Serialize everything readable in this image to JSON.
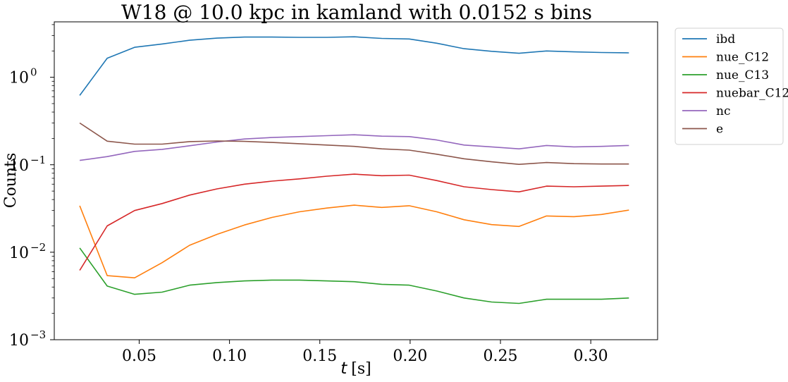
{
  "chart_data": {
    "type": "line",
    "title": "W18 @ 10.0 kpc in kamland with 0.0152 s bins",
    "xlabel_var": "t",
    "xlabel_unit": "[s]",
    "ylabel": "Counts",
    "yscale": "log",
    "ylim": [
      0.001,
      4.3
    ],
    "xlim": [
      0.003,
      0.337
    ],
    "grid": false,
    "legend_position": "outside-top-right",
    "x_ticks": [
      0.05,
      0.1,
      0.15,
      0.2,
      0.25,
      0.3
    ],
    "x_tick_labels": [
      "0.05",
      "0.10",
      "0.15",
      "0.20",
      "0.25",
      "0.30"
    ],
    "y_ticks": [
      {
        "value": 0.001,
        "base": "10",
        "exp": "−3"
      },
      {
        "value": 0.01,
        "base": "10",
        "exp": "−2"
      },
      {
        "value": 0.1,
        "base": "10",
        "exp": "−1"
      },
      {
        "value": 1,
        "base": "10",
        "exp": "0"
      }
    ],
    "x": [
      0.0171,
      0.0323,
      0.0475,
      0.0627,
      0.0779,
      0.0931,
      0.1083,
      0.1235,
      0.1387,
      0.1539,
      0.1691,
      0.1843,
      0.1995,
      0.2147,
      0.2299,
      0.2451,
      0.2603,
      0.2755,
      0.2907,
      0.3059,
      0.3211
    ],
    "series": [
      {
        "name": "ibd",
        "color": "#1f77b4",
        "values": [
          0.62,
          1.65,
          2.2,
          2.4,
          2.65,
          2.8,
          2.88,
          2.88,
          2.86,
          2.86,
          2.9,
          2.78,
          2.74,
          2.45,
          2.12,
          1.98,
          1.88,
          2.0,
          1.95,
          1.92,
          1.9
        ]
      },
      {
        "name": "nue_C12",
        "color": "#ff7f0e",
        "values": [
          0.034,
          0.0054,
          0.0051,
          0.0076,
          0.012,
          0.016,
          0.0205,
          0.025,
          0.029,
          0.032,
          0.0345,
          0.0325,
          0.034,
          0.029,
          0.0235,
          0.0207,
          0.0197,
          0.026,
          0.0255,
          0.027,
          0.0303
        ]
      },
      {
        "name": "nue_C13",
        "color": "#2ca02c",
        "values": [
          0.0112,
          0.0041,
          0.0033,
          0.0035,
          0.0042,
          0.0045,
          0.0047,
          0.0048,
          0.0048,
          0.0047,
          0.0046,
          0.0043,
          0.0042,
          0.0036,
          0.003,
          0.0027,
          0.0026,
          0.0029,
          0.0029,
          0.0029,
          0.003
        ]
      },
      {
        "name": "nuebar_C12",
        "color": "#d62728",
        "values": [
          0.0062,
          0.02,
          0.03,
          0.036,
          0.045,
          0.053,
          0.06,
          0.065,
          0.069,
          0.074,
          0.078,
          0.075,
          0.076,
          0.066,
          0.056,
          0.052,
          0.049,
          0.057,
          0.056,
          0.057,
          0.058
        ]
      },
      {
        "name": "nc",
        "color": "#9467bd",
        "values": [
          0.112,
          0.124,
          0.142,
          0.15,
          0.165,
          0.182,
          0.197,
          0.205,
          0.21,
          0.215,
          0.22,
          0.212,
          0.21,
          0.192,
          0.168,
          0.16,
          0.152,
          0.166,
          0.16,
          0.162,
          0.166
        ]
      },
      {
        "name": "e",
        "color": "#8c564b",
        "values": [
          0.3,
          0.186,
          0.172,
          0.172,
          0.184,
          0.187,
          0.185,
          0.18,
          0.174,
          0.168,
          0.162,
          0.152,
          0.147,
          0.132,
          0.117,
          0.108,
          0.101,
          0.106,
          0.103,
          0.102,
          0.102
        ]
      }
    ]
  }
}
